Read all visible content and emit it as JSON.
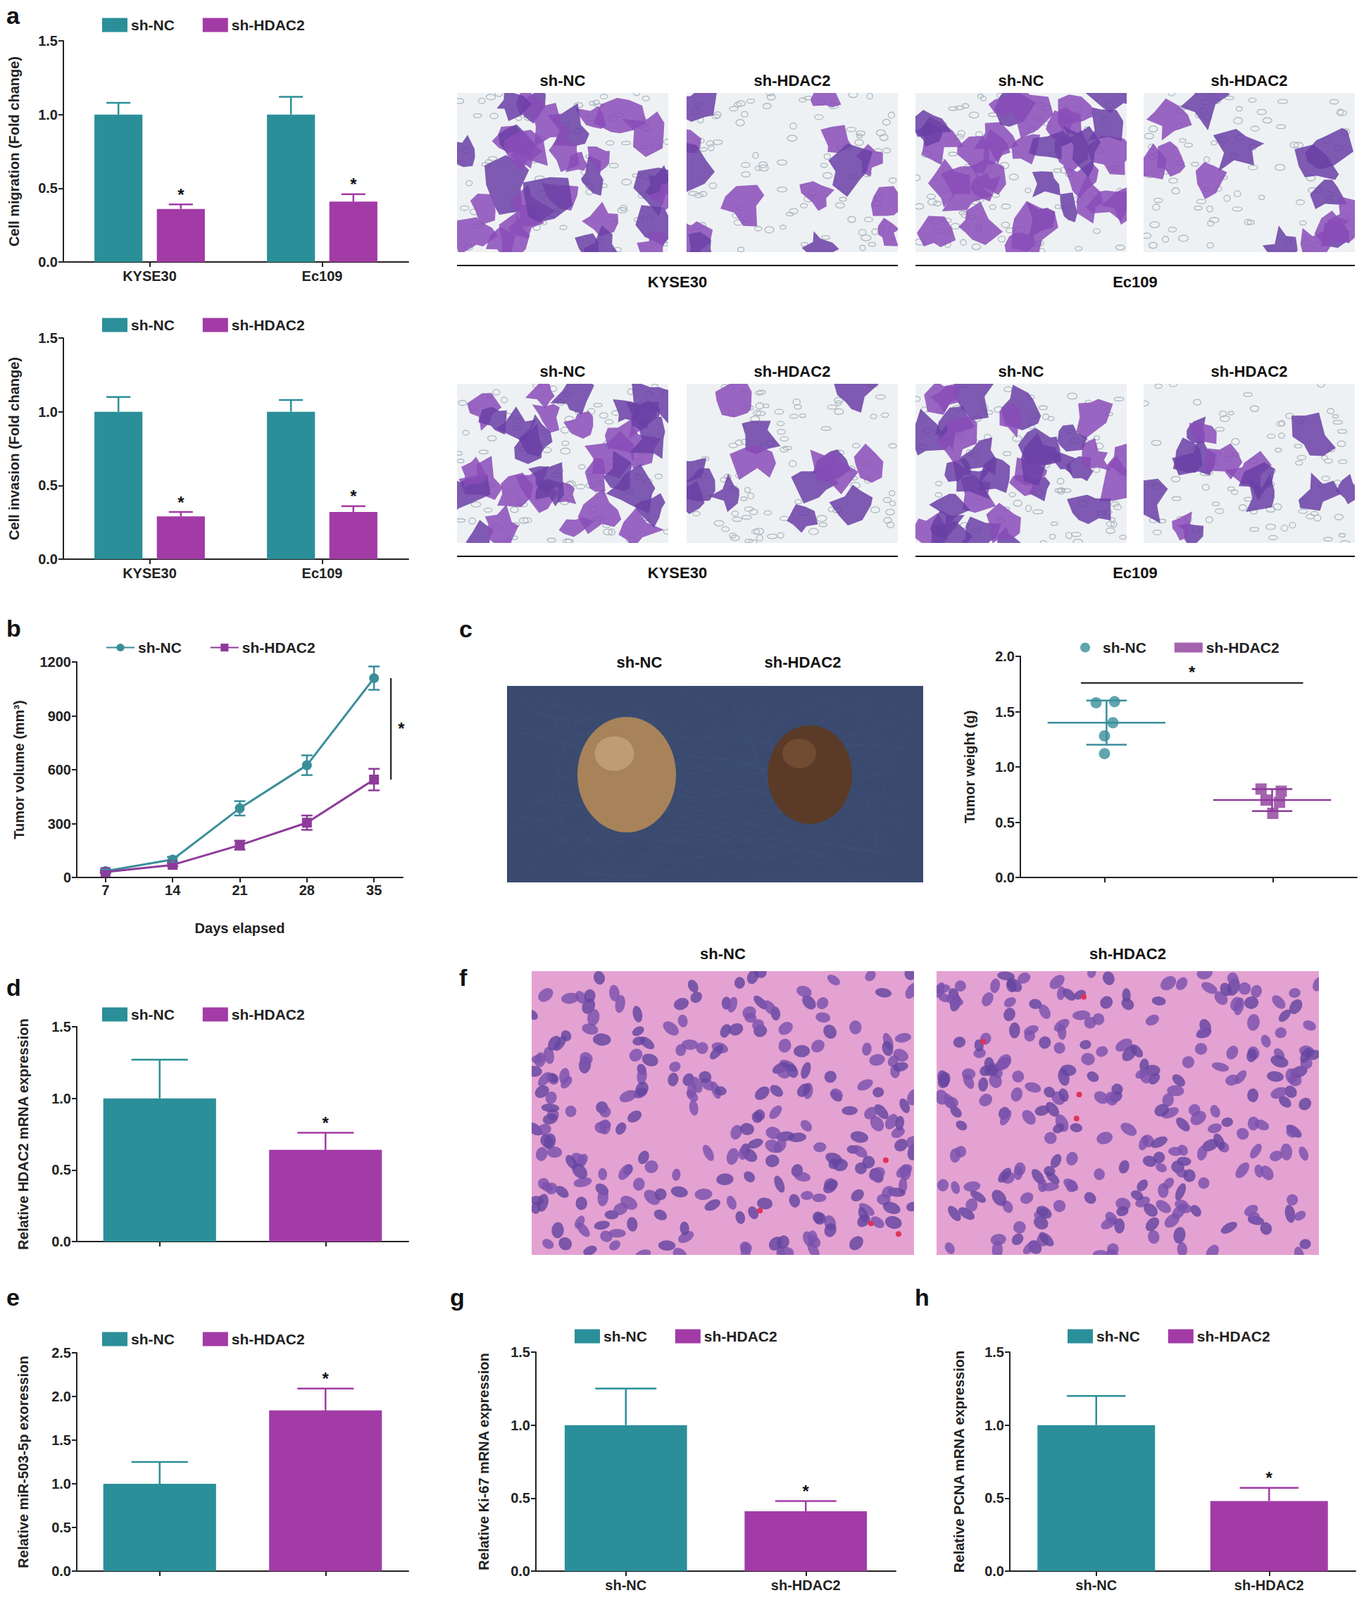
{
  "chart_data": [
    {
      "type": "bar",
      "title": "a",
      "categories": [
        "KYSE30",
        "Ec109"
      ],
      "series": [
        {
          "name": "sh-NC",
          "color": "#2b8f99",
          "values": [
            1.0,
            1.0
          ],
          "errors": [
            0.08,
            0.12
          ]
        },
        {
          "name": "sh-HDAC2",
          "color": "#a23ba6",
          "values": [
            0.36,
            0.41
          ],
          "errors": [
            0.03,
            0.05
          ]
        }
      ],
      "ylabel": "Cell migration (Fold change)",
      "ylim": [
        0,
        1.5
      ],
      "yticks": [
        {
          "value": 0,
          "label": "0.0"
        },
        0.5,
        {
          "value": 1,
          "label": "1.0"
        },
        1.5
      ],
      "annotations": [
        {
          "text": "*",
          "series": "sh-HDAC2"
        }
      ],
      "legend": "top"
    },
    {
      "type": "bar",
      "categories": [
        "KYSE30",
        "Ec109"
      ],
      "series": [
        {
          "name": "sh-NC",
          "color": "#2b8f99",
          "values": [
            1.0,
            1.0
          ],
          "errors": [
            0.1,
            0.08
          ]
        },
        {
          "name": "sh-HDAC2",
          "color": "#a23ba6",
          "values": [
            0.29,
            0.32
          ],
          "errors": [
            0.03,
            0.04
          ]
        }
      ],
      "ylabel": "Cell invasion (Fold change)",
      "ylim": [
        0,
        1.5
      ],
      "yticks": [
        {
          "value": 0,
          "label": "0.0"
        },
        0.5,
        {
          "value": 1,
          "label": "1.0"
        },
        1.5
      ],
      "annotations": [
        {
          "text": "*",
          "series": "sh-HDAC2"
        }
      ],
      "legend": "top"
    },
    {
      "type": "line",
      "title": "b",
      "x": [
        7,
        14,
        21,
        28,
        35
      ],
      "series": [
        {
          "name": "sh-NC",
          "color": "#3a8e9a",
          "marker": "circle",
          "values": [
            35,
            100,
            385,
            625,
            1110
          ],
          "errors": [
            10,
            15,
            40,
            55,
            65
          ]
        },
        {
          "name": "sh-HDAC2",
          "color": "#8e3b9b",
          "marker": "square",
          "values": [
            30,
            70,
            180,
            305,
            545
          ],
          "errors": [
            5,
            8,
            25,
            40,
            60
          ]
        }
      ],
      "xlabel": "Days elapsed",
      "ylabel": "Tumor volume (mm³)",
      "xlim": [
        4,
        38
      ],
      "xticks": [
        7,
        14,
        21,
        28,
        35
      ],
      "ylim": [
        0,
        1200
      ],
      "yticks": [
        0,
        300,
        600,
        900,
        1200
      ],
      "annotations": [
        {
          "text": "*",
          "x": 35,
          "y": [
            545,
            1110
          ]
        }
      ],
      "legend": "top"
    },
    {
      "type": "scatter",
      "series": [
        {
          "name": "sh-NC",
          "color": "#3a8e9a",
          "marker": "circle",
          "x": [
            0.95,
            1.06,
            1.05,
            1.0,
            1.0
          ],
          "values": [
            1.58,
            1.59,
            1.4,
            1.28,
            1.12
          ],
          "mean": 1.4,
          "sd": 0.2
        },
        {
          "name": "sh-HDAC2",
          "color": "#8e3b9b",
          "marker": "square",
          "x": [
            1.93,
            2.05,
            1.96,
            2.04,
            2.0
          ],
          "values": [
            0.8,
            0.78,
            0.7,
            0.68,
            0.58
          ],
          "mean": 0.7,
          "sd": 0.1
        }
      ],
      "ylabel": "Tumor weight (g)",
      "xlim": [
        0.5,
        2.5
      ],
      "xticks": [
        1,
        2
      ],
      "ylim": [
        0,
        2
      ],
      "yticks": [
        {
          "value": 0,
          "label": "0.0"
        },
        0.5,
        {
          "value": 1,
          "label": "1.0"
        },
        1.5,
        {
          "value": 2,
          "label": "2.0"
        }
      ],
      "tick_labels": "y",
      "annotations": [
        {
          "text": "*",
          "x": [
            0.86,
            2.18
          ],
          "y": 1.76
        }
      ],
      "legend": "top"
    },
    {
      "type": "bar",
      "title": "d",
      "categories": [
        null,
        null
      ],
      "series": [
        {
          "name": "sh-NC",
          "color": "#2b8f99",
          "values": [
            1.0,
            null
          ],
          "errors": [
            0.27,
            null
          ]
        },
        {
          "name": "sh-HDAC2",
          "color": "#a23ba6",
          "values": [
            null,
            0.64
          ],
          "errors": [
            null,
            0.12
          ]
        }
      ],
      "ylabel": "Relative HDAC2 mRNA expression",
      "ylim": [
        0,
        1.5
      ],
      "yticks": [
        {
          "value": 0,
          "label": "0.0"
        },
        0.5,
        {
          "value": 1,
          "label": "1.0"
        },
        1.5
      ],
      "tick_labels": "y",
      "annotations": [
        {
          "text": "*",
          "series": "sh-HDAC2"
        }
      ],
      "legend": "top"
    },
    {
      "type": "bar",
      "title": "e",
      "categories": [
        null,
        null
      ],
      "series": [
        {
          "name": "sh-NC",
          "color": "#2b8f99",
          "values": [
            1.0,
            null
          ],
          "errors": [
            0.25,
            null
          ]
        },
        {
          "name": "sh-HDAC2",
          "color": "#a23ba6",
          "values": [
            null,
            1.84
          ],
          "errors": [
            null,
            0.25
          ]
        }
      ],
      "ylabel": "Relative miR-503-5p exoression",
      "ylim": [
        0,
        2.5
      ],
      "yticks": [
        {
          "value": 0,
          "label": "0.0"
        },
        0.5,
        {
          "value": 1,
          "label": "1.0"
        },
        1.5,
        {
          "value": 2,
          "label": "2.0"
        },
        2.5
      ],
      "tick_labels": "y",
      "annotations": [
        {
          "text": "*",
          "series": "sh-HDAC2"
        }
      ],
      "legend": "top"
    },
    {
      "type": "bar",
      "title": "g",
      "categories": [
        "sh-NC",
        "sh-HDAC2"
      ],
      "series": [
        {
          "name": "sh-NC",
          "color": "#2b8f99",
          "values": [
            1.0,
            null
          ],
          "errors": [
            0.25,
            null
          ]
        },
        {
          "name": "sh-HDAC2",
          "color": "#a23ba6",
          "values": [
            null,
            0.41
          ],
          "errors": [
            null,
            0.07
          ]
        }
      ],
      "ylabel": "Relative Ki-67 mRNA expression",
      "ylim": [
        0,
        1.5
      ],
      "yticks": [
        {
          "value": 0,
          "label": "0.0"
        },
        0.5,
        {
          "value": 1,
          "label": "1.0"
        },
        1.5
      ],
      "annotations": [
        {
          "text": "*",
          "series": "sh-HDAC2"
        }
      ],
      "legend": "top"
    },
    {
      "type": "bar",
      "title": "h",
      "categories": [
        "sh-NC",
        "sh-HDAC2"
      ],
      "series": [
        {
          "name": "sh-NC",
          "color": "#2b8f99",
          "values": [
            1.0,
            null
          ],
          "errors": [
            0.2,
            null
          ]
        },
        {
          "name": "sh-HDAC2",
          "color": "#a23ba6",
          "values": [
            null,
            0.48
          ],
          "errors": [
            null,
            0.09
          ]
        }
      ],
      "ylabel": "Relative PCNA mRNA expression",
      "ylim": [
        0,
        1.5
      ],
      "yticks": [
        {
          "value": 0,
          "label": "0.0"
        },
        0.5,
        {
          "value": 1,
          "label": "1.0"
        },
        1.5
      ],
      "annotations": [
        {
          "text": "*",
          "series": "sh-HDAC2"
        }
      ],
      "legend": "top"
    }
  ],
  "images": [
    {
      "captions": [
        "sh-NC",
        "sh-HDAC2",
        "sh-NC",
        "sh-HDAC2"
      ],
      "groups": [
        "KYSE30",
        "Ec109"
      ]
    },
    {
      "captions": [
        "sh-NC",
        "sh-HDAC2",
        "sh-NC",
        "sh-HDAC2"
      ],
      "groups": [
        "KYSE30",
        "Ec109"
      ]
    },
    {
      "title": "c",
      "captions": [
        "sh-NC",
        "sh-HDAC2"
      ]
    },
    {
      "title": "f",
      "captions": [
        "sh-NC",
        "sh-HDAC2"
      ]
    }
  ]
}
